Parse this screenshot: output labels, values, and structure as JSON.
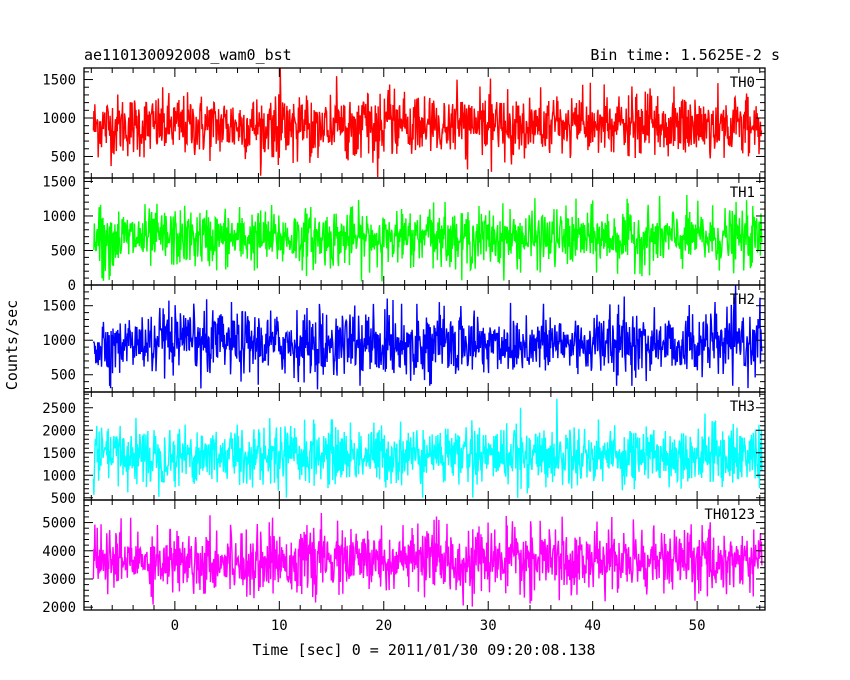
{
  "title_left": "ae110130092008_wam0_bst",
  "title_right": "Bin time: 1.5625E-2 s",
  "ylabel": "Counts/sec",
  "xlabel": "Time [sec] 0 = 2011/01/30 09:20:08.138",
  "chart_data": {
    "type": "line",
    "x_axis": {
      "range": [
        -8.7,
        56.5
      ],
      "ticks": [
        0,
        10,
        20,
        30,
        40,
        50
      ],
      "tick_labels": [
        "0",
        "10",
        "20",
        "30",
        "40",
        "50"
      ],
      "minor_step": 2,
      "data_range": [
        -7.8,
        56.2
      ],
      "bin_time": 0.015625
    },
    "panels": [
      {
        "name": "TH0",
        "color": "#ff0000",
        "ylim": [
          220,
          1650
        ],
        "ticks": [
          500,
          1000,
          1500
        ],
        "tick_labels": [
          "500",
          "1000",
          "1500"
        ],
        "minor_step": 100,
        "mean": 900,
        "sd": 200,
        "min_clip": 220,
        "max_clip": 1650
      },
      {
        "name": "TH1",
        "color": "#00ff00",
        "ylim": [
          0,
          1550
        ],
        "ticks": [
          0,
          500,
          1000,
          1500
        ],
        "tick_labels": [
          "0",
          "500",
          "1000",
          "1500"
        ],
        "minor_step": 100,
        "mean": 680,
        "sd": 210,
        "min_clip": 40,
        "max_clip": 1550
      },
      {
        "name": "TH2",
        "color": "#0000ff",
        "ylim": [
          250,
          1800
        ],
        "ticks": [
          500,
          1000,
          1500
        ],
        "tick_labels": [
          "500",
          "1000",
          "1500"
        ],
        "minor_step": 100,
        "mean": 950,
        "sd": 230,
        "min_clip": 280,
        "max_clip": 1800
      },
      {
        "name": "TH3",
        "color": "#00ffff",
        "ylim": [
          450,
          2850
        ],
        "ticks": [
          500,
          1000,
          1500,
          2000,
          2500
        ],
        "tick_labels": [
          "500",
          "1000",
          "1500",
          "2000",
          "2500"
        ],
        "minor_step": 100,
        "mean": 1450,
        "sd": 330,
        "min_clip": 480,
        "max_clip": 2850
      },
      {
        "name": "TH0123",
        "color": "#ff00ff",
        "ylim": [
          1900,
          5800
        ],
        "ticks": [
          2000,
          3000,
          4000,
          5000
        ],
        "tick_labels": [
          "2000",
          "3000",
          "4000",
          "5000"
        ],
        "minor_step": 200,
        "mean": 3650,
        "sd": 560,
        "min_clip": 2000,
        "max_clip": 5800
      }
    ]
  }
}
